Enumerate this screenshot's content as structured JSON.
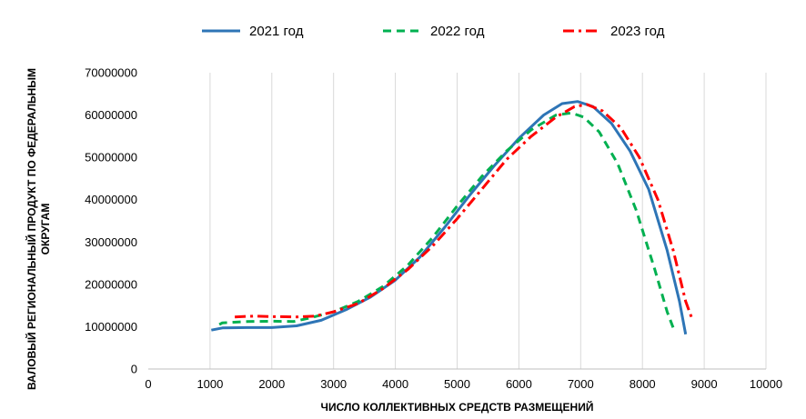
{
  "chart_data": {
    "type": "line",
    "xlabel": "ЧИСЛО КОЛЛЕКТИВНЫХ СРЕДСТВ РАЗМЕЩЕНИЙ",
    "ylabel": "ВАЛОВЫЙ РЕГИОНАЛЬНЫЙ ПРОДУКТ ПО ФЕДЕРАЛЬНЫМ ОКРУГАМ",
    "xlim": [
      0,
      10000
    ],
    "ylim": [
      0,
      70000000
    ],
    "xticks": [
      "0",
      "1000",
      "2000",
      "3000",
      "4000",
      "5000",
      "6000",
      "7000",
      "8000",
      "9000",
      "10000"
    ],
    "yticks": [
      "0",
      "10000000",
      "20000000",
      "30000000",
      "40000000",
      "50000000",
      "60000000",
      "70000000"
    ],
    "grid": "vertical",
    "legend_position": "top",
    "series": [
      {
        "name": "2021 год",
        "color": "#2e75b6",
        "dash": "solid",
        "points": [
          [
            1020,
            9200000
          ],
          [
            1200,
            9700000
          ],
          [
            1600,
            9800000
          ],
          [
            2000,
            9800000
          ],
          [
            2400,
            10200000
          ],
          [
            2800,
            11500000
          ],
          [
            3200,
            14000000
          ],
          [
            3600,
            17000000
          ],
          [
            4000,
            21000000
          ],
          [
            4400,
            26500000
          ],
          [
            4800,
            33500000
          ],
          [
            5200,
            41000000
          ],
          [
            5600,
            48000000
          ],
          [
            6000,
            54500000
          ],
          [
            6400,
            60000000
          ],
          [
            6700,
            62700000
          ],
          [
            6950,
            63200000
          ],
          [
            7200,
            62000000
          ],
          [
            7500,
            58000000
          ],
          [
            7800,
            51500000
          ],
          [
            8100,
            42500000
          ],
          [
            8400,
            28000000
          ],
          [
            8600,
            16000000
          ],
          [
            8700,
            8200000
          ]
        ]
      },
      {
        "name": "2022 год",
        "color": "#00b050",
        "dash": "dashed",
        "points": [
          [
            1150,
            10500000
          ],
          [
            1200,
            10900000
          ],
          [
            1600,
            11200000
          ],
          [
            2000,
            11300000
          ],
          [
            2350,
            11200000
          ],
          [
            2600,
            12000000
          ],
          [
            3000,
            13500000
          ],
          [
            3400,
            16000000
          ],
          [
            3800,
            19500000
          ],
          [
            4200,
            24500000
          ],
          [
            4600,
            31000000
          ],
          [
            5000,
            38500000
          ],
          [
            5400,
            45500000
          ],
          [
            5800,
            51500000
          ],
          [
            6200,
            56500000
          ],
          [
            6600,
            60000000
          ],
          [
            6850,
            60500000
          ],
          [
            7050,
            59500000
          ],
          [
            7300,
            56000000
          ],
          [
            7600,
            48500000
          ],
          [
            7900,
            37500000
          ],
          [
            8200,
            23500000
          ],
          [
            8400,
            13500000
          ],
          [
            8500,
            9700000
          ]
        ]
      },
      {
        "name": "2023 год",
        "color": "#ff0000",
        "dash": "dashdot",
        "points": [
          [
            1400,
            12300000
          ],
          [
            1700,
            12500000
          ],
          [
            2000,
            12400000
          ],
          [
            2400,
            12300000
          ],
          [
            2700,
            12500000
          ],
          [
            3000,
            13500000
          ],
          [
            3400,
            15500000
          ],
          [
            3800,
            19000000
          ],
          [
            4200,
            23500000
          ],
          [
            4600,
            29000000
          ],
          [
            5000,
            35500000
          ],
          [
            5400,
            42500000
          ],
          [
            5800,
            49500000
          ],
          [
            6200,
            55000000
          ],
          [
            6600,
            59500000
          ],
          [
            6900,
            62000000
          ],
          [
            7100,
            62500000
          ],
          [
            7350,
            61000000
          ],
          [
            7650,
            57000000
          ],
          [
            7950,
            50000000
          ],
          [
            8250,
            40000000
          ],
          [
            8500,
            28000000
          ],
          [
            8700,
            16000000
          ],
          [
            8800,
            12000000
          ]
        ]
      }
    ]
  }
}
